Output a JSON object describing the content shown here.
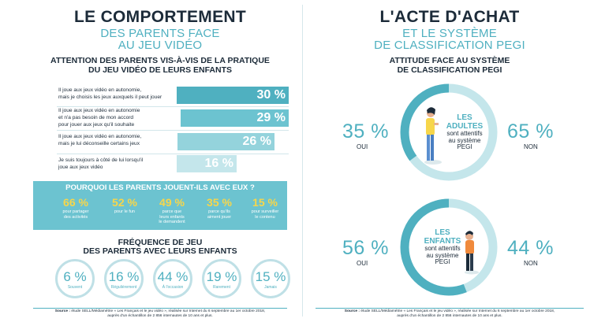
{
  "left": {
    "title": "LE COMPORTEMENT",
    "subtitle_1": "DES PARENTS FACE",
    "subtitle_2": "AU JEU VIDÉO",
    "attention": {
      "title_1": "ATTENTION DES PARENTS VIS-À-VIS DE LA PRATIQUE",
      "title_2": "DU JEU VIDÉO DE LEURS ENFANTS",
      "items": [
        {
          "line1": "Il joue aux jeux vidéo en autonomie,",
          "line2": "mais je choisis les jeux auxquels il peut jouer",
          "line3": "",
          "pct": "30 %",
          "value": 30,
          "color": "#4fb0c0"
        },
        {
          "line1": "Il joue aux jeux vidéo en autonomie",
          "line2": "et n'a pas besoin de mon accord",
          "line3": "pour jouer aux jeux qu'il souhaite",
          "pct": "29 %",
          "value": 29,
          "color": "#6cc3d0"
        },
        {
          "line1": "Il joue aux jeux vidéo en autonomie,",
          "line2": "mais je lui déconseille certains jeux",
          "line3": "",
          "pct": "26 %",
          "value": 26,
          "color": "#94d3dc"
        },
        {
          "line1": "Je suis toujours à côté de lui lorsqu'il",
          "line2": "joue aux jeux vidéo",
          "line3": "",
          "pct": "16 %",
          "value": 16,
          "color": "#c4e6eb"
        }
      ]
    },
    "why": {
      "title": "POURQUOI LES PARENTS JOUENT-ILS AVEC EUX ?",
      "items": [
        {
          "pct": "66 %",
          "text1": "pour partager",
          "text2": "des activités",
          "text3": ""
        },
        {
          "pct": "52 %",
          "text1": "pour le fun",
          "text2": "",
          "text3": ""
        },
        {
          "pct": "49 %",
          "text1": "parce que",
          "text2": "leurs enfants",
          "text3": "le demandent"
        },
        {
          "pct": "35 %",
          "text1": "parce qu'ils",
          "text2": "aiment jouer",
          "text3": ""
        },
        {
          "pct": "15 %",
          "text1": "pour surveiller",
          "text2": "le contenu",
          "text3": ""
        }
      ]
    },
    "frequency": {
      "title_1": "FRÉQUENCE DE JEU",
      "title_2": "DES PARENTS AVEC LEURS ENFANTS",
      "items": [
        {
          "pct": "6 %",
          "label": "Souvent"
        },
        {
          "pct": "16 %",
          "label": "Régulièrement"
        },
        {
          "pct": "44 %",
          "label": "À l'occasion"
        },
        {
          "pct": "19 %",
          "label": "Rarement"
        },
        {
          "pct": "15 %",
          "label": "Jamais"
        }
      ]
    },
    "source": {
      "label": "Source :",
      "line1": " étude SELL/Médiamétrie « Les Français et le jeu vidéo », réalisée sur Internet du 6 septembre au 1er octobre 2018,",
      "line2": "auprès d'un échantillon de 2 856 internautes de 10 ans et plus."
    }
  },
  "right": {
    "title": "L'ACTE D'ACHAT",
    "subtitle_1": "ET LE SYSTÈME",
    "subtitle_2": "DE CLASSIFICATION PEGI",
    "attitude_title_1": "ATTITUDE FACE AU SYSTÈME",
    "attitude_title_2": "DE CLASSIFICATION PEGI",
    "adults": {
      "oui_pct": "35 %",
      "oui_label": "OUI",
      "oui_value": 35,
      "non_pct": "65 %",
      "non_label": "NON",
      "non_value": 65,
      "head": "LES",
      "head2": "ADULTES",
      "body1": "sont attentifs",
      "body2": "au système",
      "body3": "PEGI"
    },
    "children": {
      "oui_pct": "56 %",
      "oui_label": "OUI",
      "oui_value": 56,
      "non_pct": "44 %",
      "non_label": "NON",
      "non_value": 44,
      "head": "LES",
      "head2": "ENFANTS",
      "body1": "sont attentifs",
      "body2": "au système",
      "body3": "PEGI"
    },
    "source": {
      "label": "Source :",
      "line1": " étude SELL/Médiamétrie « Les Français et le jeu vidéo », réalisée sur Internet du 6 septembre au 1er octobre 2018,",
      "line2": "auprès d'un échantillon de 2 856 internautes de 10 ans et plus."
    }
  },
  "colors": {
    "navy": "#1c2b39",
    "teal": "#4fb0c0",
    "light_teal": "#c4e6eb",
    "band": "#6cc3d0",
    "yellow": "#f7d64a"
  }
}
